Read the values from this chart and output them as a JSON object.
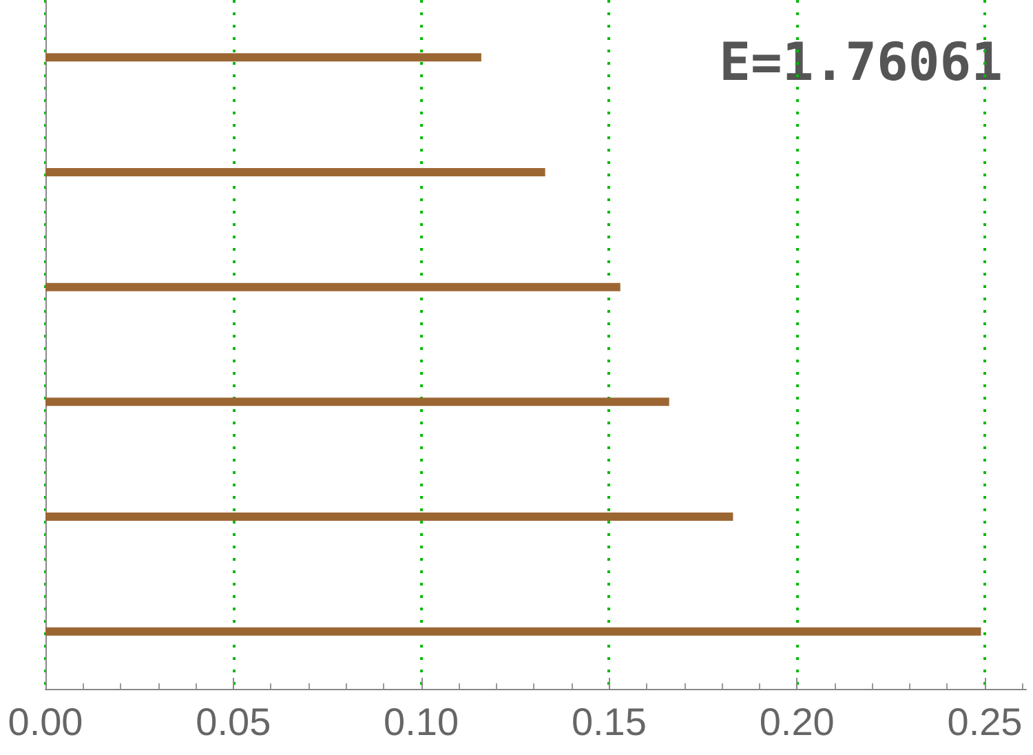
{
  "chart_data": {
    "type": "bar",
    "orientation": "horizontal",
    "categories": [
      null,
      null,
      null,
      null,
      null,
      null
    ],
    "values": [
      0.116,
      0.133,
      0.153,
      0.166,
      0.183,
      0.249
    ],
    "color": "#9c6633",
    "xlim": [
      0,
      0.261
    ],
    "xticks": [
      {
        "value": 0,
        "label": "0.00"
      },
      {
        "value": 0.05,
        "label": "0.05"
      },
      {
        "value": 0.1,
        "label": "0.10"
      },
      {
        "value": 0.15,
        "label": "0.15"
      },
      {
        "value": 0.2,
        "label": "0.20"
      },
      {
        "value": 0.25,
        "label": "0.25"
      }
    ],
    "grid": "x",
    "annotations": [
      "E=1.76061"
    ]
  }
}
